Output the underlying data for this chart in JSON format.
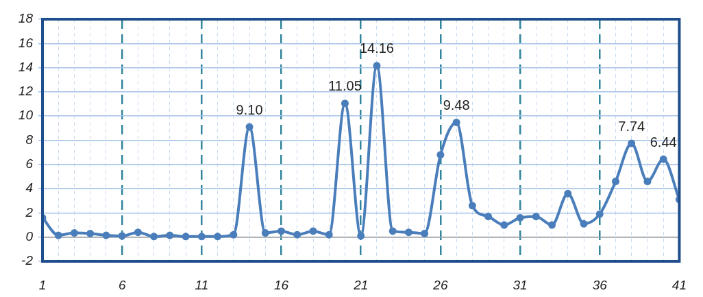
{
  "chart_data": {
    "type": "line",
    "x": [
      1,
      2,
      3,
      4,
      5,
      6,
      7,
      8,
      9,
      10,
      11,
      12,
      13,
      14,
      15,
      16,
      17,
      18,
      19,
      20,
      21,
      22,
      23,
      24,
      25,
      26,
      27,
      28,
      29,
      30,
      31,
      32,
      33,
      34,
      35,
      36,
      37,
      38,
      39,
      40,
      41
    ],
    "series": [
      {
        "color": "#4a7ebb",
        "values": [
          1.6,
          0.15,
          0.35,
          0.3,
          0.15,
          0.1,
          0.4,
          0.05,
          0.15,
          0.05,
          0.05,
          0.05,
          0.2,
          9.1,
          0.35,
          0.5,
          0.2,
          0.5,
          0.2,
          11.05,
          0.1,
          14.16,
          0.5,
          0.4,
          0.3,
          6.8,
          9.48,
          2.6,
          1.7,
          1.0,
          1.6,
          1.7,
          1.0,
          3.6,
          1.1,
          1.9,
          4.6,
          7.74,
          4.6,
          6.44,
          3.1
        ],
        "value_labels": [
          null,
          null,
          null,
          null,
          null,
          null,
          null,
          null,
          null,
          null,
          null,
          null,
          null,
          "9.10",
          null,
          null,
          null,
          null,
          null,
          "11.05",
          null,
          "14.16",
          null,
          null,
          null,
          null,
          "9.48",
          null,
          null,
          null,
          null,
          null,
          null,
          null,
          null,
          null,
          null,
          "7.74",
          null,
          "6.44",
          null
        ]
      }
    ],
    "xlim": [
      1,
      41
    ],
    "xticks": [
      1,
      {
        "value": 2,
        "label": null
      },
      {
        "value": 3,
        "label": null
      },
      {
        "value": 4,
        "label": null
      },
      {
        "value": 5,
        "label": null
      },
      6,
      {
        "value": 7,
        "label": null
      },
      {
        "value": 8,
        "label": null
      },
      {
        "value": 9,
        "label": null
      },
      {
        "value": 10,
        "label": null
      },
      11,
      {
        "value": 12,
        "label": null
      },
      {
        "value": 13,
        "label": null
      },
      {
        "value": 14,
        "label": null
      },
      {
        "value": 15,
        "label": null
      },
      16,
      {
        "value": 17,
        "label": null
      },
      {
        "value": 18,
        "label": null
      },
      {
        "value": 19,
        "label": null
      },
      {
        "value": 20,
        "label": null
      },
      21,
      {
        "value": 22,
        "label": null
      },
      {
        "value": 23,
        "label": null
      },
      {
        "value": 24,
        "label": null
      },
      {
        "value": 25,
        "label": null
      },
      26,
      {
        "value": 27,
        "label": null
      },
      {
        "value": 28,
        "label": null
      },
      {
        "value": 29,
        "label": null
      },
      {
        "value": 30,
        "label": null
      },
      31,
      {
        "value": 32,
        "label": null
      },
      {
        "value": 33,
        "label": null
      },
      {
        "value": 34,
        "label": null
      },
      {
        "value": 35,
        "label": null
      },
      36,
      {
        "value": 37,
        "label": null
      },
      {
        "value": 38,
        "label": null
      },
      {
        "value": 39,
        "label": null
      },
      {
        "value": 40,
        "label": null
      },
      41
    ],
    "ylim": [
      -2,
      18
    ],
    "yticks": [
      -2,
      0,
      2,
      4,
      6,
      8,
      10,
      12,
      14,
      16,
      18
    ],
    "grid": true,
    "marker": "circle",
    "line_style": "solid",
    "legend": false
  }
}
